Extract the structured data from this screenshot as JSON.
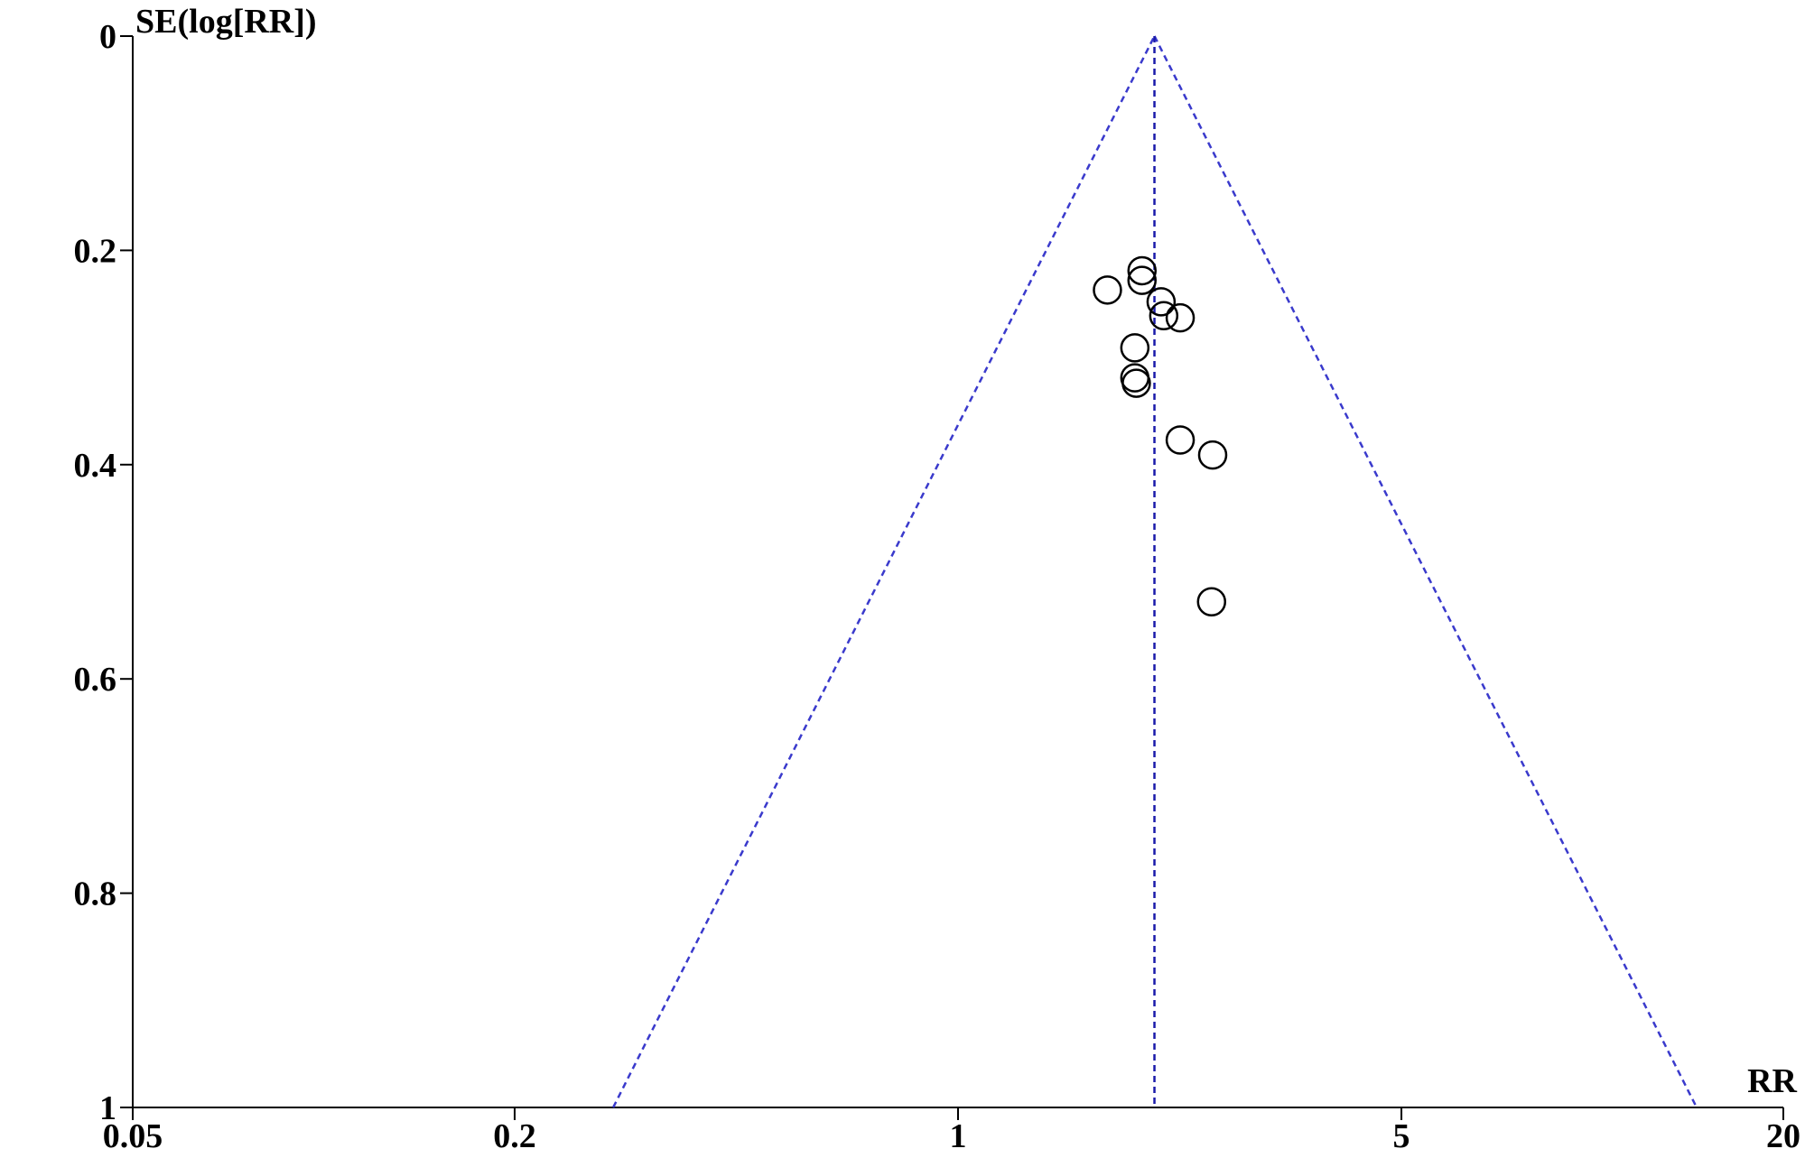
{
  "chart_data": {
    "type": "scatter",
    "x_label": "RR",
    "y_label": "SE(log[RR])",
    "xscale": "log",
    "y_inverted": true,
    "xlim": [
      0.05,
      20
    ],
    "ylim": [
      0,
      1
    ],
    "xticks": [
      0.05,
      0.2,
      1,
      5,
      20
    ],
    "yticks": [
      0,
      0.2,
      0.4,
      0.6,
      0.8,
      1
    ],
    "series": [
      {
        "kind": "dashed",
        "color": "#3a3acc",
        "x": [
          0.286,
          2.04
        ],
        "values": [
          1,
          0
        ]
      },
      {
        "kind": "dashed",
        "color": "#3a3acc",
        "x": [
          2.04,
          14.6
        ],
        "values": [
          0,
          1
        ]
      },
      {
        "kind": "dashed",
        "color": "#1a1aaa",
        "x": [
          2.04,
          2.04
        ],
        "values": [
          0,
          1
        ]
      },
      {
        "kind": "markers",
        "color": "#000000",
        "x": [
          1.95,
          1.95,
          1.72,
          2.09,
          2.11,
          2.24,
          1.9,
          1.9,
          1.91,
          2.24,
          2.52,
          2.51
        ],
        "values": [
          0.219,
          0.228,
          0.237,
          0.248,
          0.261,
          0.263,
          0.291,
          0.319,
          0.324,
          0.377,
          0.391,
          0.528
        ]
      }
    ]
  }
}
